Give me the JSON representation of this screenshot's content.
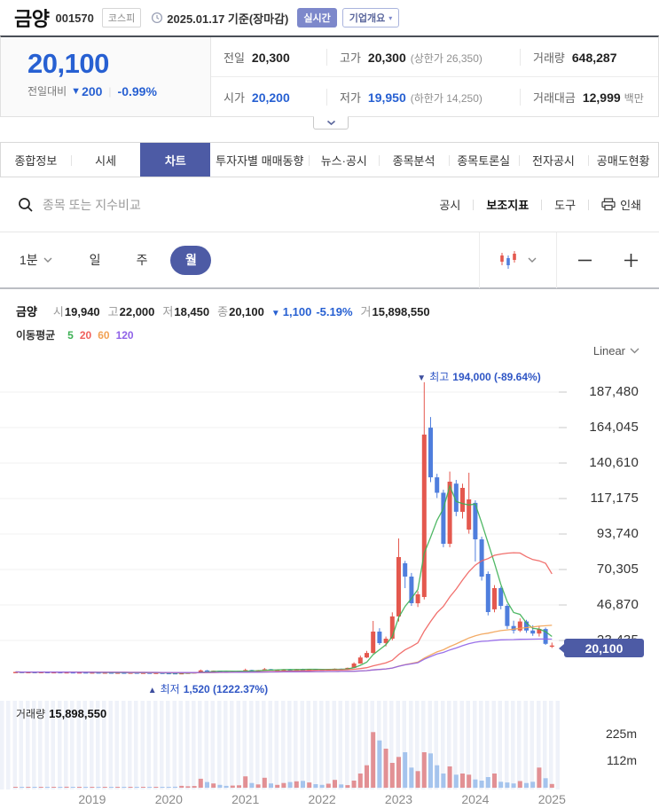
{
  "icons": {
    "down_triangle": "▼",
    "up_triangle": "▲"
  },
  "colors": {
    "accent_navy": "#4d5ba5",
    "text_blue": "#2760d2",
    "candle_up": "#e4584e",
    "candle_down": "#4f7edd",
    "vol_up": "#e29094",
    "vol_down": "#a5c4ed",
    "grid": "#f0f0f0"
  },
  "header": {
    "name": "금양",
    "code": "001570",
    "market_badge": "코스피",
    "date_text": "2025.01.17 기준(장마감)",
    "realtime_badge": "실시간",
    "overview_badge": "기업개요"
  },
  "price": {
    "current": "20,100",
    "change_label": "전일대비",
    "change_value": "200",
    "change_pct": "-0.99%",
    "prev_label": "전일",
    "prev": "20,300",
    "high_label": "고가",
    "high": "20,300",
    "high_limit": "(상한가 26,350)",
    "volume_label": "거래량",
    "volume": "648,287",
    "open_label": "시가",
    "open": "20,200",
    "low_label": "저가",
    "low": "19,950",
    "low_limit": "(하한가 14,250)",
    "value_label": "거래대금",
    "value": "12,999",
    "value_unit": "백만"
  },
  "tabs": [
    {
      "label": "종합정보",
      "active": false
    },
    {
      "label": "시세",
      "active": false
    },
    {
      "label": "차트",
      "active": true
    },
    {
      "label": "투자자별 매매동향",
      "active": false
    },
    {
      "label": "뉴스·공시",
      "active": false
    },
    {
      "label": "종목분석",
      "active": false
    },
    {
      "label": "종목토론실",
      "active": false
    },
    {
      "label": "전자공시",
      "active": false
    },
    {
      "label": "공매도현황",
      "active": false
    }
  ],
  "toolbar": {
    "search_placeholder": "종목 또는 지수비교",
    "disclosure": "공시",
    "indicators": "보조지표",
    "tools": "도구",
    "print": "인쇄"
  },
  "timeframe": {
    "minute": "1분",
    "day": "일",
    "week": "주",
    "month": "월"
  },
  "chart_header": {
    "symbol": "금양",
    "o_label": "시",
    "o": "19,940",
    "h_label": "고",
    "h": "22,000",
    "l_label": "저",
    "l": "18,450",
    "c_label": "종",
    "c": "20,100",
    "chg": "1,100",
    "chg_pct": "-5.19%",
    "v_label": "거",
    "v": "15,898,550",
    "ma_label": "이동평균",
    "scale_label": "Linear"
  },
  "chart_data": {
    "type": "candlestick+volume",
    "title": "금양 monthly candles 2018-01 ~ 2025-01, KRW",
    "interval": "month",
    "start": "2018-01",
    "y_ticks": [
      {
        "value": 187480,
        "label": "187,480"
      },
      {
        "value": 164045,
        "label": "164,045"
      },
      {
        "value": 140610,
        "label": "140,610"
      },
      {
        "value": 117175,
        "label": "117,175"
      },
      {
        "value": 93740,
        "label": "93,740"
      },
      {
        "value": 70305,
        "label": "70,305"
      },
      {
        "value": 46870,
        "label": "46,870"
      },
      {
        "value": 23435,
        "label": "23,435",
        "behind_tag": true
      }
    ],
    "volume_ticks": [
      {
        "value": 225,
        "label": "225m"
      },
      {
        "value": 112,
        "label": "112m"
      }
    ],
    "x_year_labels": [
      {
        "index": 12,
        "label": "2019"
      },
      {
        "index": 24,
        "label": "2020"
      },
      {
        "index": 36,
        "label": "2021"
      },
      {
        "index": 48,
        "label": "2022"
      },
      {
        "index": 60,
        "label": "2023"
      },
      {
        "index": 72,
        "label": "2024"
      },
      {
        "index": 84,
        "label": "2025"
      }
    ],
    "ma": [
      {
        "period": "5",
        "color": "#3cb054"
      },
      {
        "period": "20",
        "color": "#f0615d"
      },
      {
        "period": "60",
        "color": "#f2a254"
      },
      {
        "period": "120",
        "color": "#8f62e8"
      }
    ],
    "candles": [
      [
        2550,
        2720,
        2450,
        2650,
        3
      ],
      [
        2650,
        2700,
        2400,
        2500,
        2
      ],
      [
        2500,
        2660,
        2450,
        2600,
        2
      ],
      [
        2600,
        2650,
        2350,
        2450,
        2
      ],
      [
        2450,
        2610,
        2400,
        2550,
        3
      ],
      [
        2550,
        2600,
        2300,
        2400,
        2
      ],
      [
        2400,
        2560,
        2350,
        2500,
        2
      ],
      [
        2500,
        2550,
        2300,
        2350,
        2
      ],
      [
        2350,
        2510,
        2300,
        2450,
        4
      ],
      [
        2450,
        2500,
        2250,
        2300,
        2
      ],
      [
        2300,
        2460,
        2250,
        2400,
        3
      ],
      [
        2400,
        2450,
        2200,
        2250,
        2
      ],
      [
        2250,
        2410,
        2200,
        2350,
        3
      ],
      [
        2350,
        2400,
        2150,
        2200,
        2
      ],
      [
        2200,
        2360,
        2150,
        2300,
        2
      ],
      [
        2300,
        2350,
        2100,
        2150,
        2
      ],
      [
        2150,
        2310,
        2100,
        2250,
        3
      ],
      [
        2250,
        2300,
        2050,
        2100,
        2
      ],
      [
        2100,
        2260,
        2050,
        2200,
        2
      ],
      [
        2200,
        2250,
        2000,
        2050,
        2
      ],
      [
        2050,
        2210,
        2000,
        2150,
        2
      ],
      [
        2150,
        2200,
        1950,
        2000,
        3
      ],
      [
        2000,
        2160,
        1950,
        2100,
        2
      ],
      [
        2100,
        2150,
        1900,
        1950,
        2
      ],
      [
        1950,
        2010,
        1850,
        1900,
        3
      ],
      [
        1900,
        1950,
        1700,
        1780,
        4
      ],
      [
        1780,
        1900,
        1520,
        1850,
        8
      ],
      [
        1850,
        2260,
        1800,
        2180,
        6
      ],
      [
        2180,
        2500,
        2120,
        2420,
        7
      ],
      [
        2420,
        4200,
        2380,
        3650,
        38
      ],
      [
        3650,
        3900,
        3000,
        3150,
        24
      ],
      [
        3150,
        3600,
        3050,
        3450,
        18
      ],
      [
        3450,
        3520,
        2850,
        2950,
        12
      ],
      [
        2950,
        3120,
        2700,
        2820,
        8
      ],
      [
        2820,
        3100,
        2750,
        3020,
        9
      ],
      [
        3020,
        3300,
        2950,
        3180,
        10
      ],
      [
        3180,
        4800,
        3100,
        3950,
        48
      ],
      [
        3950,
        4100,
        3350,
        3520,
        20
      ],
      [
        3520,
        3910,
        3400,
        3750,
        14
      ],
      [
        3750,
        5300,
        3650,
        4450,
        42
      ],
      [
        4450,
        4600,
        3800,
        3980,
        18
      ],
      [
        3980,
        4310,
        3850,
        4150,
        12
      ],
      [
        4150,
        4500,
        4050,
        4350,
        20
      ],
      [
        4350,
        4600,
        4100,
        4220,
        24
      ],
      [
        4220,
        4650,
        4150,
        4480,
        27
      ],
      [
        4480,
        4750,
        4250,
        4380,
        29
      ],
      [
        4380,
        4700,
        4200,
        4550,
        22
      ],
      [
        4550,
        4660,
        4150,
        4280,
        15
      ],
      [
        4280,
        4400,
        3950,
        4120,
        12
      ],
      [
        4120,
        4460,
        4000,
        4350,
        17
      ],
      [
        4350,
        4900,
        4250,
        4720,
        33
      ],
      [
        4720,
        4850,
        4400,
        4550,
        14
      ],
      [
        4550,
        5500,
        4450,
        5350,
        11
      ],
      [
        5350,
        9000,
        5200,
        8200,
        30
      ],
      [
        8200,
        13500,
        8000,
        12200,
        60
      ],
      [
        12200,
        16500,
        11800,
        15200,
        95
      ],
      [
        15200,
        36300,
        14800,
        29300,
        235
      ],
      [
        29300,
        31500,
        20500,
        21700,
        200
      ],
      [
        21700,
        26000,
        19500,
        24600,
        165
      ],
      [
        24600,
        42000,
        23500,
        39300,
        105
      ],
      [
        39300,
        90800,
        36000,
        78500,
        130
      ],
      [
        74400,
        76000,
        58000,
        65600,
        150
      ],
      [
        65600,
        68000,
        46300,
        48000,
        85
      ],
      [
        48000,
        56000,
        45500,
        53900,
        70
      ],
      [
        52100,
        194000,
        50500,
        159400,
        150
      ],
      [
        164000,
        171000,
        128000,
        131200,
        145
      ],
      [
        131200,
        133500,
        117500,
        121000,
        95
      ],
      [
        121000,
        123000,
        85000,
        87300,
        60
      ],
      [
        87300,
        135000,
        85000,
        128300,
        90
      ],
      [
        127000,
        129500,
        105500,
        108400,
        55
      ],
      [
        108400,
        127000,
        104000,
        124200,
        60
      ],
      [
        96700,
        134200,
        94000,
        116600,
        55
      ],
      [
        114300,
        116000,
        75600,
        90200,
        35
      ],
      [
        90200,
        92000,
        63000,
        65600,
        30
      ],
      [
        67400,
        69000,
        40000,
        42200,
        45
      ],
      [
        44000,
        60000,
        42000,
        58000,
        60
      ],
      [
        58000,
        59000,
        44000,
        46300,
        25
      ],
      [
        46300,
        47500,
        31000,
        33000,
        22
      ],
      [
        33000,
        36500,
        28000,
        30000,
        18
      ],
      [
        30000,
        38000,
        29000,
        36000,
        28
      ],
      [
        36000,
        37000,
        28500,
        30000,
        20
      ],
      [
        30000,
        33500,
        26500,
        28000,
        25
      ],
      [
        28000,
        33000,
        26000,
        31000,
        85
      ],
      [
        31000,
        32000,
        20500,
        21200,
        40
      ],
      [
        19940,
        22000,
        18450,
        20100,
        15.9
      ]
    ],
    "annotations": {
      "high_index": 64,
      "high_prefix": "최고",
      "high_text": "194,000 (-89.64%)",
      "low_index": 26,
      "low_prefix": "최저",
      "low_text": "1,520 (1222.37%)",
      "price_tag": "20,100"
    },
    "volume_label": "거래량",
    "volume_value": "15,898,550"
  }
}
